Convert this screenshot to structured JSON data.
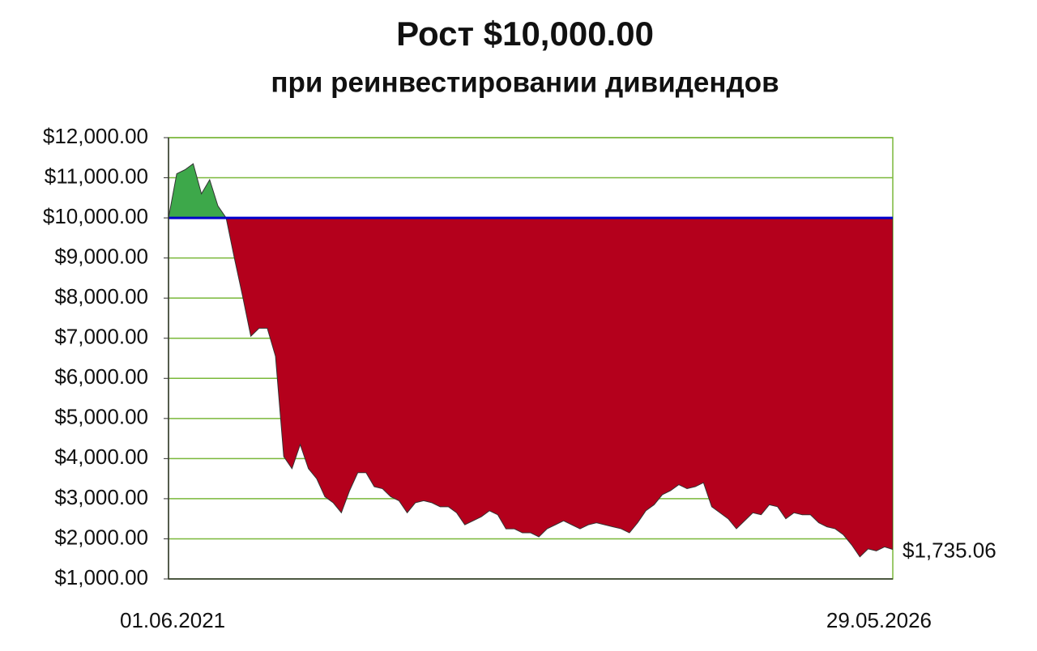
{
  "chart_data": {
    "type": "area",
    "title": "Рост $10,000.00",
    "subtitle": "при реинвестировании дивидендов",
    "categories": [
      "01.06.2021",
      null,
      null,
      null,
      null,
      null,
      null,
      null,
      null,
      null,
      null,
      null,
      null,
      null,
      null,
      null,
      null,
      null,
      null,
      null,
      null,
      null,
      null,
      null,
      null,
      null,
      null,
      null,
      null,
      null,
      null,
      null,
      null,
      null,
      null,
      null,
      null,
      null,
      null,
      null,
      null,
      null,
      null,
      null,
      null,
      null,
      null,
      null,
      null,
      null,
      null,
      null,
      null,
      null,
      null,
      null,
      null,
      null,
      null,
      null,
      null,
      null,
      null,
      null,
      null,
      null,
      null,
      null,
      null,
      null,
      null,
      null,
      null,
      null,
      null,
      null,
      null,
      null,
      null,
      null,
      null,
      null,
      null,
      null,
      null,
      null,
      null,
      null,
      "29.05.2026"
    ],
    "values": [
      10000,
      11100,
      11200,
      11350,
      10600,
      10950,
      10300,
      10000,
      9000,
      8050,
      7050,
      7250,
      7250,
      6550,
      4050,
      3750,
      4350,
      3750,
      3500,
      3050,
      2900,
      2650,
      3200,
      3650,
      3650,
      3300,
      3250,
      3050,
      2950,
      2650,
      2900,
      2950,
      2900,
      2800,
      2800,
      2650,
      2350,
      2450,
      2550,
      2700,
      2600,
      2250,
      2250,
      2150,
      2150,
      2050,
      2250,
      2350,
      2450,
      2350,
      2250,
      2350,
      2400,
      2350,
      2300,
      2250,
      2150,
      2400,
      2700,
      2850,
      3100,
      3200,
      3350,
      3250,
      3300,
      3400,
      2800,
      2650,
      2500,
      2250,
      2450,
      2650,
      2600,
      2850,
      2800,
      2500,
      2650,
      2600,
      2600,
      2400,
      2300,
      2250,
      2100,
      1850,
      1550,
      1750,
      1700,
      1800,
      1735.06
    ],
    "value_labels": [
      null,
      null,
      null,
      null,
      null,
      null,
      null,
      null,
      null,
      null,
      null,
      null,
      null,
      null,
      null,
      null,
      null,
      null,
      null,
      null,
      null,
      null,
      null,
      null,
      null,
      null,
      null,
      null,
      null,
      null,
      null,
      null,
      null,
      null,
      null,
      null,
      null,
      null,
      null,
      null,
      null,
      null,
      null,
      null,
      null,
      null,
      null,
      null,
      null,
      null,
      null,
      null,
      null,
      null,
      null,
      null,
      null,
      null,
      null,
      null,
      null,
      null,
      null,
      null,
      null,
      null,
      null,
      null,
      null,
      null,
      null,
      null,
      null,
      null,
      null,
      null,
      null,
      null,
      null,
      null,
      null,
      null,
      null,
      null,
      null,
      null,
      null,
      null,
      "$1,735.06"
    ],
    "baseline": 10000,
    "baseline_color": "#0000cc",
    "color_above": "#3da84a",
    "color_below": "#b4001c",
    "grid_color": "#7ab83a",
    "grid": true,
    "ylim": [
      1000,
      12000
    ],
    "yticks": [
      {
        "value": 1000,
        "label": "$1,000.00"
      },
      {
        "value": 2000,
        "label": "$2,000.00"
      },
      {
        "value": 3000,
        "label": "$3,000.00"
      },
      {
        "value": 4000,
        "label": "$4,000.00"
      },
      {
        "value": 5000,
        "label": "$5,000.00"
      },
      {
        "value": 6000,
        "label": "$6,000.00"
      },
      {
        "value": 7000,
        "label": "$7,000.00"
      },
      {
        "value": 8000,
        "label": "$8,000.00"
      },
      {
        "value": 9000,
        "label": "$9,000.00"
      },
      {
        "value": 10000,
        "label": "$10,000.00"
      },
      {
        "value": 11000,
        "label": "$11,000.00"
      },
      {
        "value": 12000,
        "label": "$12,000.00"
      }
    ]
  }
}
